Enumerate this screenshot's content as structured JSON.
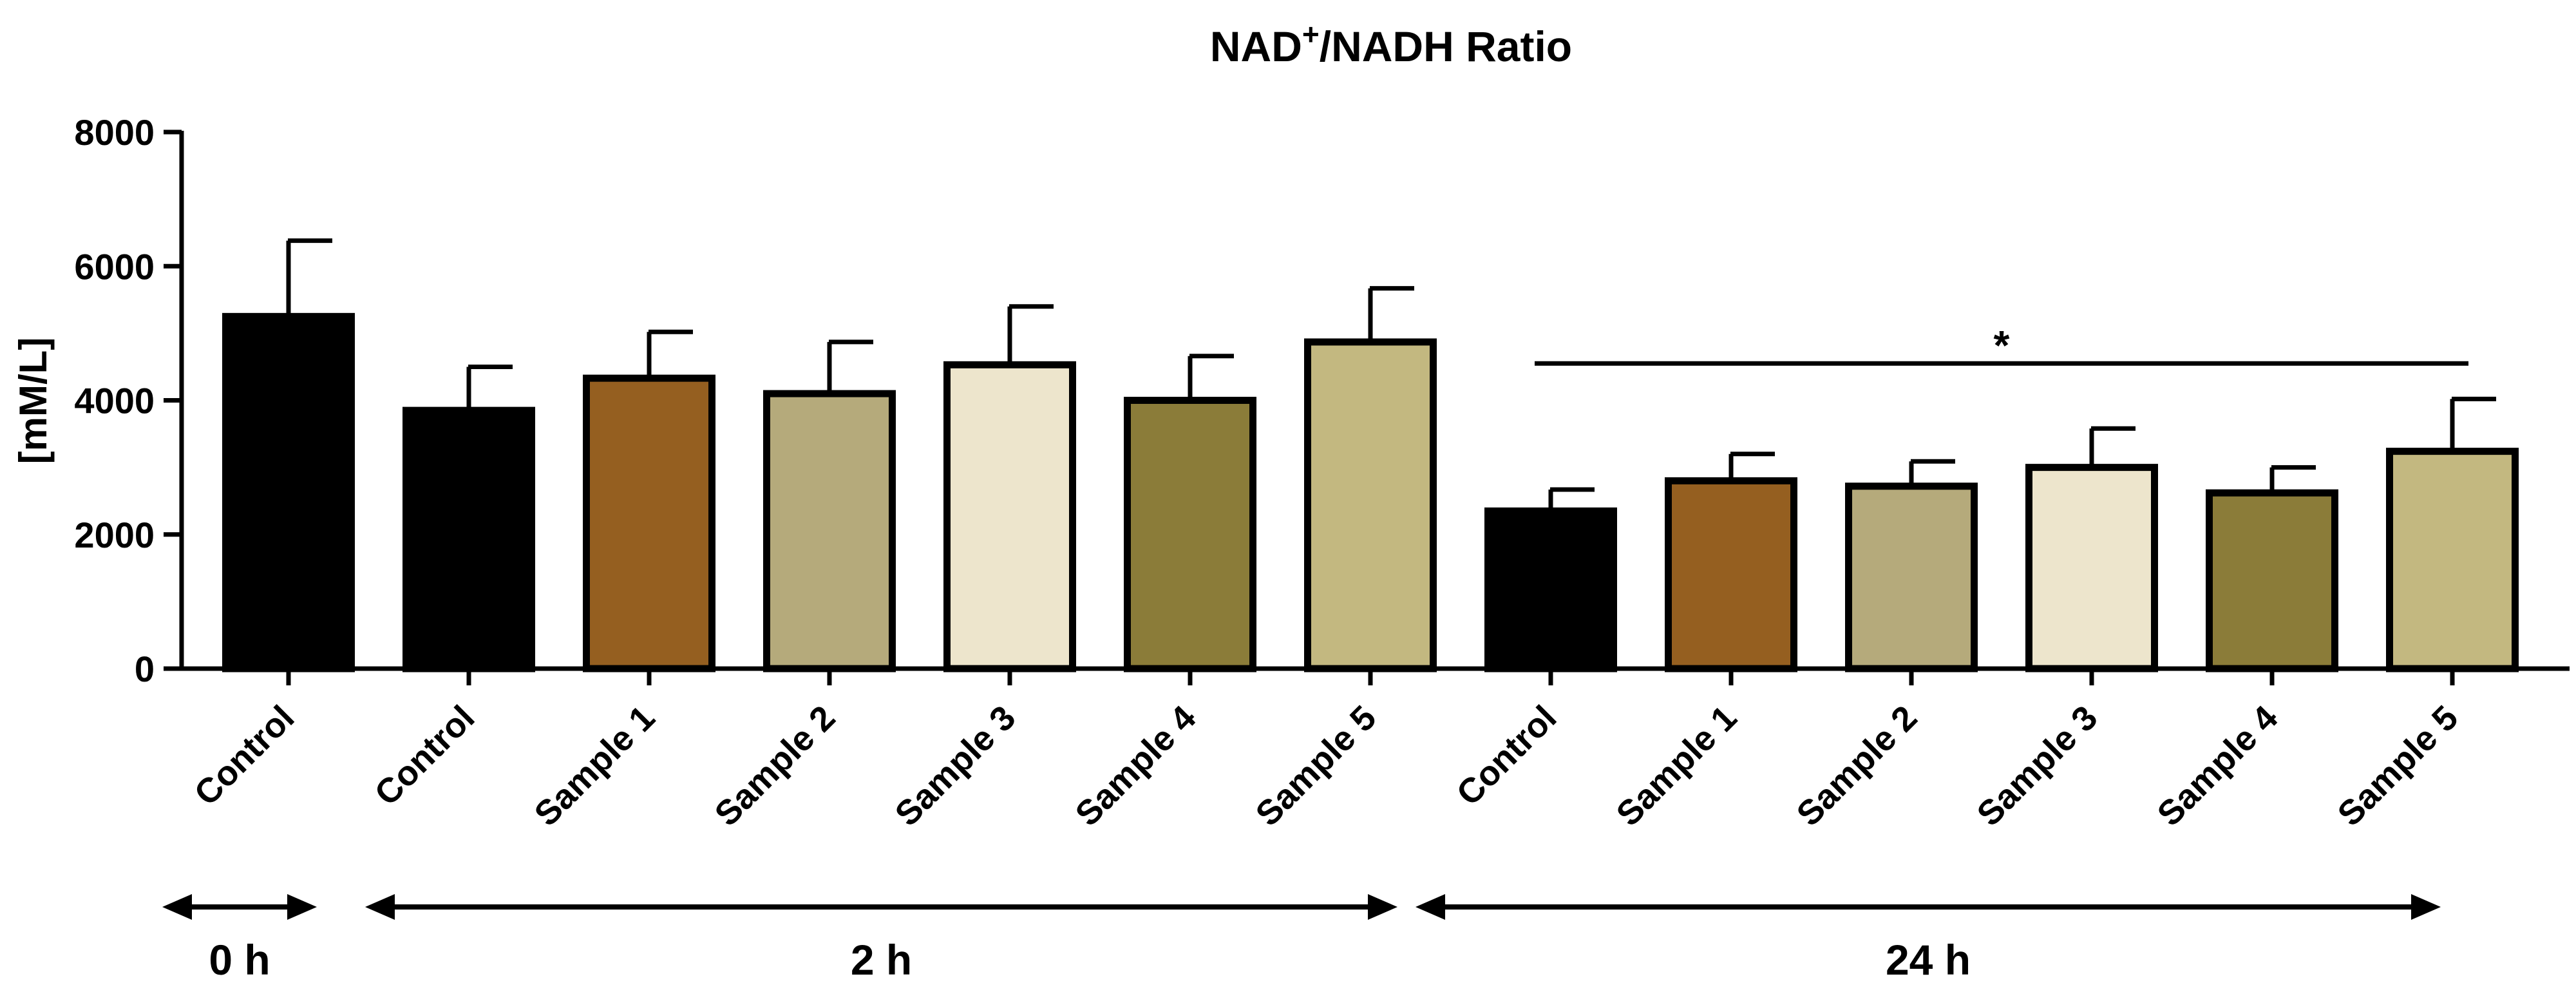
{
  "chart_data": {
    "type": "bar",
    "title_main": "NAD",
    "title_sup": "+",
    "title_rest": "/NADH Ratio",
    "ylabel": "[mM/L]",
    "xlabel": "",
    "ylim": [
      0,
      8000
    ],
    "yticks": [
      0,
      2000,
      4000,
      6000,
      8000
    ],
    "categories": [
      "Control",
      "Control",
      "Sample 1",
      "Sample 2",
      "Sample 3",
      "Sample 4",
      "Sample 5",
      "Control",
      "Sample 1",
      "Sample 2",
      "Sample 3",
      "Sample 4",
      "Sample 5"
    ],
    "values": [
      5250,
      3850,
      4330,
      4100,
      4530,
      4000,
      4870,
      2350,
      2800,
      2720,
      3000,
      2620,
      3240
    ],
    "errors": [
      1130,
      650,
      690,
      770,
      870,
      660,
      800,
      320,
      400,
      370,
      580,
      380,
      780
    ],
    "bar_colors": [
      "#000000",
      "#000000",
      "#955f20",
      "#b5aa7b",
      "#ede5cc",
      "#8b7c39",
      "#c3b880",
      "#000000",
      "#955f20",
      "#b5aa7b",
      "#ede5cc",
      "#8b7c39",
      "#c3b880"
    ],
    "annotations": [
      {
        "text": "*",
        "from_index": 7,
        "to_index": 12,
        "y": 4550
      }
    ],
    "groups": [
      {
        "label": "0 h",
        "start_index": 0,
        "end_index": 0
      },
      {
        "label": "2 h",
        "start_index": 1,
        "end_index": 6
      },
      {
        "label": "24 h",
        "start_index": 7,
        "end_index": 12
      }
    ],
    "legend": "none",
    "grid": false
  }
}
